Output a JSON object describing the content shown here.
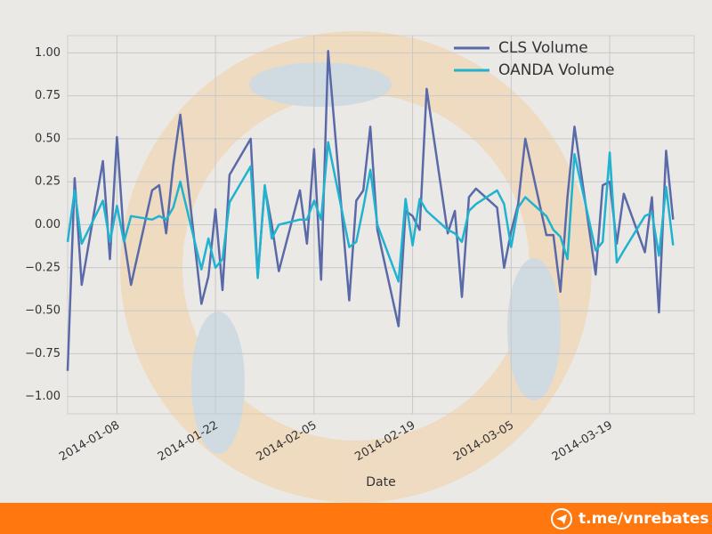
{
  "chart_data": {
    "type": "line",
    "xlabel": "Date",
    "x": [
      "2014-01-01",
      "2014-01-02",
      "2014-01-03",
      "2014-01-06",
      "2014-01-07",
      "2014-01-08",
      "2014-01-09",
      "2014-01-10",
      "2014-01-13",
      "2014-01-14",
      "2014-01-15",
      "2014-01-16",
      "2014-01-17",
      "2014-01-20",
      "2014-01-21",
      "2014-01-22",
      "2014-01-23",
      "2014-01-24",
      "2014-01-27",
      "2014-01-28",
      "2014-01-29",
      "2014-01-30",
      "2014-01-31",
      "2014-02-03",
      "2014-02-04",
      "2014-02-05",
      "2014-02-06",
      "2014-02-07",
      "2014-02-10",
      "2014-02-11",
      "2014-02-12",
      "2014-02-13",
      "2014-02-14",
      "2014-02-17",
      "2014-02-18",
      "2014-02-19",
      "2014-02-20",
      "2014-02-21",
      "2014-02-24",
      "2014-02-25",
      "2014-02-26",
      "2014-02-27",
      "2014-02-28",
      "2014-03-03",
      "2014-03-04",
      "2014-03-05",
      "2014-03-06",
      "2014-03-07",
      "2014-03-10",
      "2014-03-11",
      "2014-03-12",
      "2014-03-13",
      "2014-03-14",
      "2014-03-17",
      "2014-03-18",
      "2014-03-19",
      "2014-03-20",
      "2014-03-21",
      "2014-03-24",
      "2014-03-25",
      "2014-03-26",
      "2014-03-27",
      "2014-03-28"
    ],
    "series": [
      {
        "name": "CLS Volume",
        "color": "#5a6aa8",
        "values": [
          -0.85,
          0.27,
          -0.35,
          0.37,
          -0.2,
          0.51,
          -0.08,
          -0.35,
          0.2,
          0.23,
          -0.05,
          0.35,
          0.64,
          -0.46,
          -0.3,
          0.09,
          -0.38,
          0.29,
          0.5,
          -0.3,
          0.22,
          0.0,
          -0.27,
          0.2,
          -0.11,
          0.44,
          -0.32,
          1.01,
          -0.44,
          0.14,
          0.2,
          0.57,
          -0.03,
          -0.59,
          0.08,
          0.05,
          -0.03,
          0.79,
          -0.05,
          0.08,
          -0.42,
          0.16,
          0.21,
          0.1,
          -0.25,
          -0.04,
          0.12,
          0.5,
          -0.06,
          -0.06,
          -0.39,
          0.16,
          0.57,
          -0.29,
          0.23,
          0.25,
          -0.11,
          0.18,
          -0.16,
          0.16,
          -0.51,
          0.43,
          0.03
        ]
      },
      {
        "name": "OANDA Volume",
        "color": "#1fb3cf",
        "values": [
          -0.1,
          0.2,
          -0.11,
          0.14,
          -0.1,
          0.11,
          -0.1,
          0.05,
          0.03,
          0.05,
          0.03,
          0.1,
          0.25,
          -0.26,
          -0.08,
          -0.25,
          -0.2,
          0.13,
          0.34,
          -0.31,
          0.23,
          -0.08,
          0.0,
          0.03,
          0.03,
          0.14,
          0.03,
          0.48,
          -0.13,
          -0.1,
          0.1,
          0.32,
          0.0,
          -0.33,
          0.15,
          -0.12,
          0.15,
          0.08,
          -0.03,
          -0.05,
          -0.1,
          0.08,
          0.12,
          0.2,
          0.12,
          -0.13,
          0.1,
          0.16,
          0.05,
          -0.03,
          -0.07,
          -0.2,
          0.41,
          -0.15,
          -0.1,
          0.42,
          -0.22,
          -0.15,
          0.05,
          0.07,
          -0.18,
          0.22,
          -0.12
        ]
      }
    ],
    "xlim": [
      "2014-01-01",
      "2014-03-31"
    ],
    "xticks": [
      "2014-01-08",
      "2014-01-22",
      "2014-02-05",
      "2014-02-19",
      "2014-03-05",
      "2014-03-19"
    ],
    "ylim": [
      -1.1,
      1.1
    ],
    "yticks": [
      {
        "value": 1,
        "label": "1.00"
      },
      {
        "value": 0.75,
        "label": "0.75"
      },
      {
        "value": 0.5,
        "label": "0.50"
      },
      {
        "value": 0.25,
        "label": "0.25"
      },
      {
        "value": 0,
        "label": "0.00"
      },
      {
        "value": -0.25,
        "label": "−0.25"
      },
      {
        "value": -0.5,
        "label": "−0.50"
      },
      {
        "value": -0.75,
        "label": "−0.75"
      },
      {
        "value": -1,
        "label": "−1.00"
      }
    ],
    "grid": true,
    "legend": "upper right"
  },
  "footer": {
    "text": "t.me/vnrebates"
  }
}
